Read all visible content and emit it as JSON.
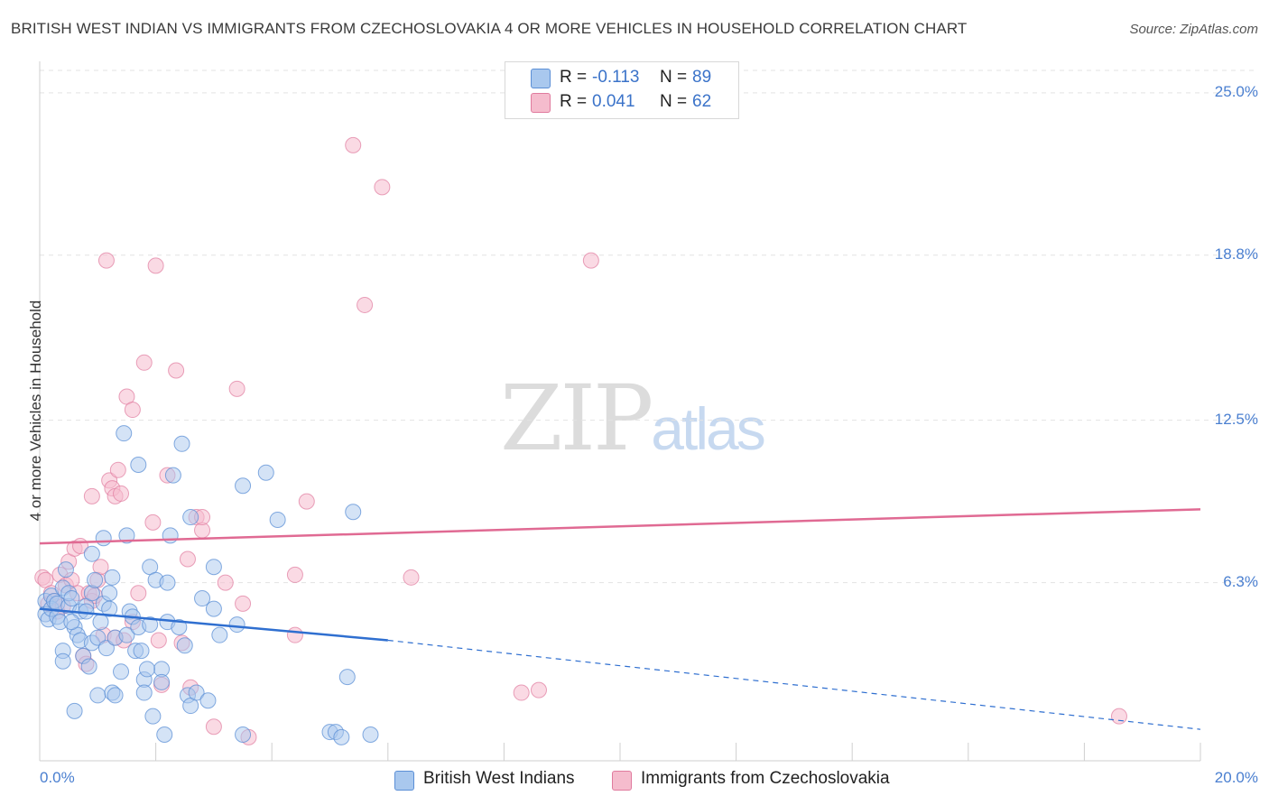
{
  "title": "BRITISH WEST INDIAN VS IMMIGRANTS FROM CZECHOSLOVAKIA 4 OR MORE VEHICLES IN HOUSEHOLD CORRELATION CHART",
  "source": "Source: ZipAtlas.com",
  "watermark": {
    "zip": "ZIP",
    "atlas": "atlas"
  },
  "legend": {
    "r_label": "R =",
    "n_label": "N =",
    "series": [
      {
        "r": "-0.113",
        "n": "89"
      },
      {
        "r": "0.041",
        "n": "62"
      }
    ]
  },
  "bottom_legend": [
    "British West Indians",
    "Immigrants from Czechoslovakia"
  ],
  "chart_data": {
    "type": "scatter",
    "xlabel": "",
    "ylabel": "4 or more Vehicles in Household",
    "xlim": [
      0,
      20
    ],
    "ylim": [
      -0.5,
      26.2
    ],
    "x_tick_labels": [
      "0.0%",
      "20.0%"
    ],
    "y_ticks": [
      6.3,
      12.5,
      18.8,
      25.0
    ],
    "y_tick_labels": [
      "6.3%",
      "12.5%",
      "18.8%",
      "25.0%"
    ],
    "grid": true,
    "legend_position": "top-center",
    "colors": {
      "blue_fill": "#a9c8ee",
      "blue_stroke": "#5b8fd6",
      "blue_line": "#2f6fd0",
      "pink_fill": "#f5bccd",
      "pink_stroke": "#e07b9e",
      "pink_line": "#e06a93",
      "axis_text": "#4a7fd0",
      "grid": "#e3e3e3"
    },
    "series": [
      {
        "name": "British West Indians",
        "color": "blue",
        "trend": {
          "x0": 0.0,
          "y0": 5.3,
          "x1": 6.0,
          "y1": 4.1,
          "x_end": 20.0,
          "y_end": 0.7
        },
        "points": [
          [
            0.1,
            5.6
          ],
          [
            0.1,
            5.1
          ],
          [
            0.15,
            4.9
          ],
          [
            0.2,
            5.8
          ],
          [
            0.2,
            5.3
          ],
          [
            0.25,
            5.6
          ],
          [
            0.3,
            5.0
          ],
          [
            0.3,
            5.5
          ],
          [
            0.35,
            4.8
          ],
          [
            0.4,
            6.1
          ],
          [
            0.4,
            3.7
          ],
          [
            0.4,
            3.3
          ],
          [
            0.45,
            6.8
          ],
          [
            0.5,
            5.4
          ],
          [
            0.5,
            5.9
          ],
          [
            0.55,
            5.7
          ],
          [
            0.6,
            4.6
          ],
          [
            0.6,
            1.4
          ],
          [
            0.65,
            4.3
          ],
          [
            0.7,
            4.1
          ],
          [
            0.7,
            5.2
          ],
          [
            0.75,
            3.5
          ],
          [
            0.8,
            5.4
          ],
          [
            0.8,
            5.2
          ],
          [
            0.85,
            3.1
          ],
          [
            0.9,
            7.4
          ],
          [
            0.9,
            5.9
          ],
          [
            0.95,
            6.4
          ],
          [
            0.9,
            4.0
          ],
          [
            1.0,
            4.2
          ],
          [
            1.0,
            2.0
          ],
          [
            1.05,
            4.8
          ],
          [
            1.1,
            8.0
          ],
          [
            1.1,
            5.5
          ],
          [
            1.15,
            3.8
          ],
          [
            1.2,
            5.9
          ],
          [
            1.2,
            5.3
          ],
          [
            1.25,
            2.1
          ],
          [
            1.25,
            6.5
          ],
          [
            1.3,
            4.2
          ],
          [
            1.3,
            2.0
          ],
          [
            1.4,
            2.9
          ],
          [
            1.45,
            12.0
          ],
          [
            1.5,
            8.1
          ],
          [
            1.5,
            4.3
          ],
          [
            1.55,
            5.2
          ],
          [
            1.6,
            5.0
          ],
          [
            1.65,
            3.7
          ],
          [
            1.7,
            10.8
          ],
          [
            1.7,
            4.6
          ],
          [
            1.75,
            3.7
          ],
          [
            1.8,
            2.6
          ],
          [
            1.8,
            2.1
          ],
          [
            1.9,
            4.7
          ],
          [
            1.9,
            6.9
          ],
          [
            1.95,
            1.2
          ],
          [
            2.0,
            6.4
          ],
          [
            2.1,
            3.0
          ],
          [
            2.1,
            2.5
          ],
          [
            2.15,
            0.5
          ],
          [
            2.2,
            4.8
          ],
          [
            2.2,
            6.3
          ],
          [
            2.25,
            8.1
          ],
          [
            2.3,
            10.4
          ],
          [
            2.4,
            4.6
          ],
          [
            2.45,
            11.6
          ],
          [
            2.5,
            3.9
          ],
          [
            2.55,
            2.0
          ],
          [
            2.6,
            1.6
          ],
          [
            2.6,
            8.8
          ],
          [
            2.7,
            2.1
          ],
          [
            2.8,
            5.7
          ],
          [
            2.9,
            1.8
          ],
          [
            3.0,
            6.9
          ],
          [
            3.0,
            5.3
          ],
          [
            3.1,
            4.3
          ],
          [
            3.4,
            4.7
          ],
          [
            3.5,
            0.5
          ],
          [
            3.5,
            10.0
          ],
          [
            3.9,
            10.5
          ],
          [
            4.1,
            8.7
          ],
          [
            5.0,
            0.6
          ],
          [
            5.1,
            0.6
          ],
          [
            5.2,
            0.4
          ],
          [
            5.3,
            2.7
          ],
          [
            5.4,
            9.0
          ],
          [
            5.7,
            0.5
          ],
          [
            1.85,
            3.0
          ],
          [
            0.55,
            4.8
          ]
        ]
      },
      {
        "name": "Immigrants from Czechoslovakia",
        "color": "pink",
        "trend": {
          "x0": 0.0,
          "y0": 7.8,
          "x1": 20.0,
          "y1": 9.1
        },
        "points": [
          [
            0.05,
            6.5
          ],
          [
            0.1,
            6.4
          ],
          [
            0.15,
            5.5
          ],
          [
            0.2,
            5.9
          ],
          [
            0.25,
            5.6
          ],
          [
            0.3,
            5.2
          ],
          [
            0.35,
            6.6
          ],
          [
            0.4,
            5.4
          ],
          [
            0.45,
            6.2
          ],
          [
            0.5,
            7.1
          ],
          [
            0.55,
            6.4
          ],
          [
            0.6,
            7.6
          ],
          [
            0.65,
            5.9
          ],
          [
            0.7,
            7.7
          ],
          [
            0.75,
            3.5
          ],
          [
            0.8,
            3.2
          ],
          [
            0.85,
            5.9
          ],
          [
            0.9,
            9.6
          ],
          [
            0.9,
            5.6
          ],
          [
            0.95,
            5.8
          ],
          [
            1.0,
            6.4
          ],
          [
            1.05,
            6.9
          ],
          [
            1.1,
            4.3
          ],
          [
            1.15,
            18.6
          ],
          [
            1.2,
            10.2
          ],
          [
            1.25,
            9.9
          ],
          [
            1.3,
            9.6
          ],
          [
            1.3,
            4.2
          ],
          [
            1.35,
            10.6
          ],
          [
            1.4,
            9.7
          ],
          [
            1.45,
            4.1
          ],
          [
            1.5,
            13.4
          ],
          [
            1.6,
            4.8
          ],
          [
            1.6,
            12.9
          ],
          [
            1.7,
            5.9
          ],
          [
            1.8,
            14.7
          ],
          [
            1.95,
            8.6
          ],
          [
            2.0,
            18.4
          ],
          [
            2.05,
            4.1
          ],
          [
            2.1,
            2.4
          ],
          [
            2.2,
            10.4
          ],
          [
            2.35,
            14.4
          ],
          [
            2.45,
            4.0
          ],
          [
            2.55,
            7.2
          ],
          [
            2.6,
            2.3
          ],
          [
            2.7,
            8.8
          ],
          [
            2.8,
            8.3
          ],
          [
            2.8,
            8.8
          ],
          [
            3.0,
            0.8
          ],
          [
            3.2,
            6.3
          ],
          [
            3.4,
            13.7
          ],
          [
            3.5,
            5.5
          ],
          [
            3.6,
            0.4
          ],
          [
            4.4,
            6.6
          ],
          [
            4.4,
            4.3
          ],
          [
            4.6,
            9.4
          ],
          [
            5.4,
            23.0
          ],
          [
            5.6,
            16.9
          ],
          [
            5.9,
            21.4
          ],
          [
            6.4,
            6.5
          ],
          [
            8.3,
            2.1
          ],
          [
            8.6,
            2.2
          ]
        ],
        "extra_points": [
          [
            9.5,
            18.6
          ],
          [
            18.6,
            1.2
          ]
        ]
      }
    ]
  }
}
